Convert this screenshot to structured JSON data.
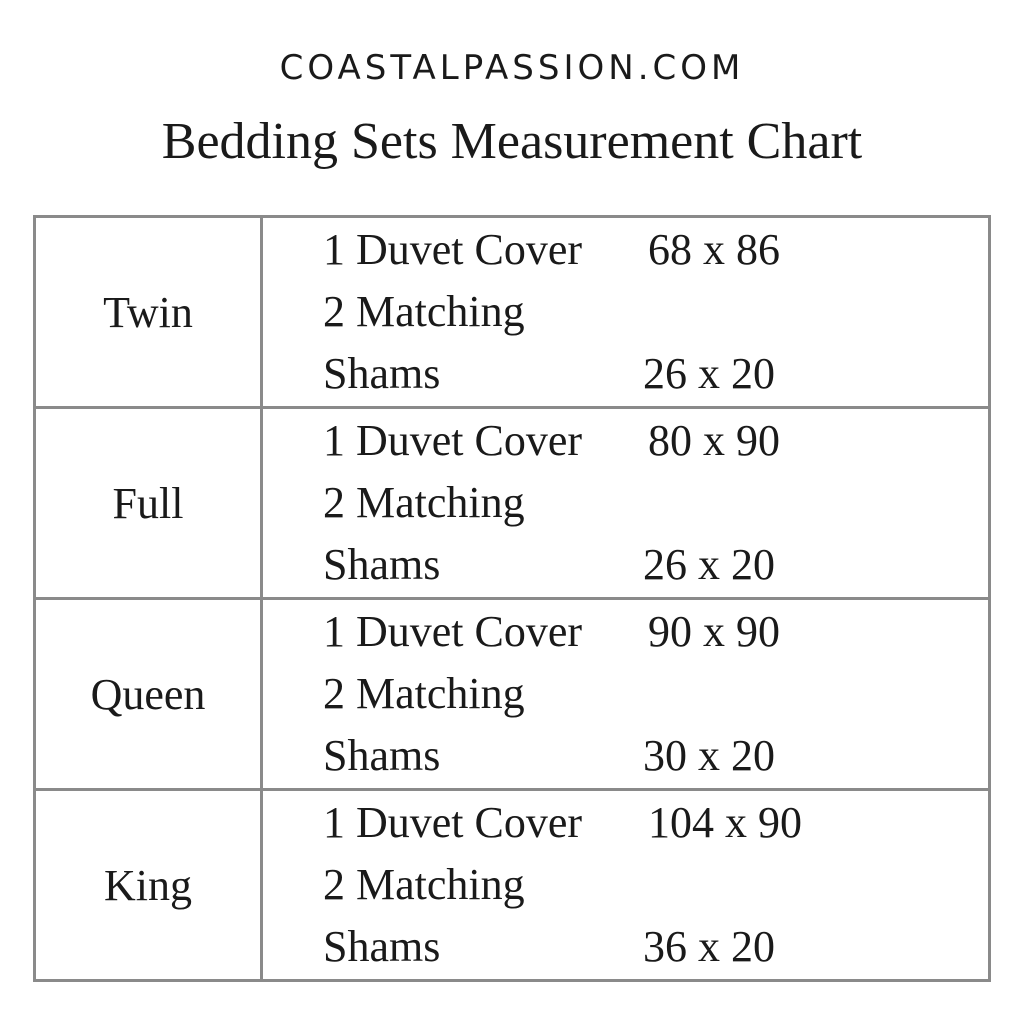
{
  "brand": "COASTALPASSION.COM",
  "title": "Bedding Sets Measurement Chart",
  "rows": [
    {
      "size": "Twin",
      "duvet_label": "1 Duvet Cover",
      "duvet": "68 x 86",
      "shams_label": "2 Matching Shams",
      "shams": "26 x 20"
    },
    {
      "size": "Full",
      "duvet_label": "1 Duvet Cover",
      "duvet": "80 x 90",
      "shams_label": "2 Matching Shams",
      "shams": "26 x 20"
    },
    {
      "size": "Queen",
      "duvet_label": "1 Duvet Cover",
      "duvet": "90 x 90",
      "shams_label": "2 Matching Shams",
      "shams": "30 x 20"
    },
    {
      "size": "King",
      "duvet_label": "1 Duvet Cover",
      "duvet": "104 x 90",
      "shams_label": "2 Matching Shams",
      "shams": "36 x 20"
    }
  ]
}
